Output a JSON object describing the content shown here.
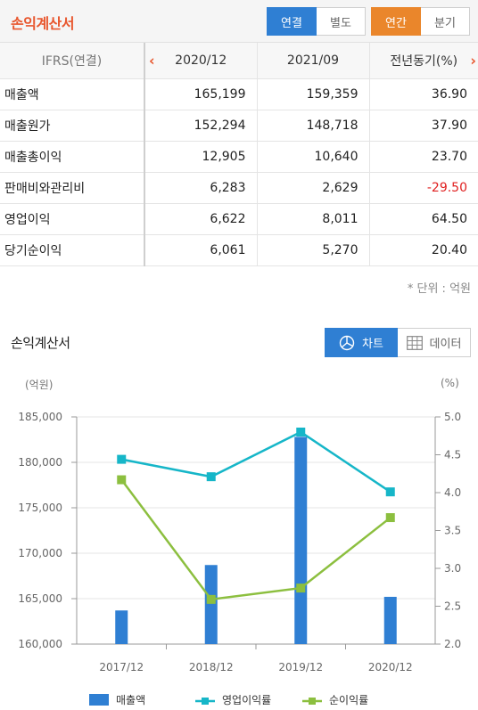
{
  "topbar": {
    "title": "손익계산서",
    "consolidation_tabs": [
      "연결",
      "별도"
    ],
    "period_tabs": [
      "연간",
      "분기"
    ]
  },
  "table": {
    "header_label": "IFRS(연결)",
    "columns": [
      "2020/12",
      "2021/09",
      "전년동기(%)"
    ],
    "rows": [
      {
        "label": "매출액",
        "values": [
          "165,199",
          "159,359",
          "36.90"
        ]
      },
      {
        "label": "매출원가",
        "values": [
          "152,294",
          "148,718",
          "37.90"
        ]
      },
      {
        "label": "매출총이익",
        "values": [
          "12,905",
          "10,640",
          "23.70"
        ]
      },
      {
        "label": "판매비와관리비",
        "values": [
          "6,283",
          "2,629",
          "-29.50"
        ]
      },
      {
        "label": "영업이익",
        "values": [
          "6,622",
          "8,011",
          "64.50"
        ]
      },
      {
        "label": "당기순이익",
        "values": [
          "6,061",
          "5,270",
          "20.40"
        ]
      }
    ],
    "unit_note": "* 단위 : 억원"
  },
  "chart_section": {
    "title": "손익계산서",
    "chart_button": "차트",
    "data_button": "데이터",
    "left_unit": "(억원)",
    "right_unit": "(%)"
  },
  "colors": {
    "bar": "#2f7fd3",
    "operating_margin": "#16b6c8",
    "net_margin": "#8cbf3f",
    "accent_orange": "#ea862b",
    "accent_blue": "#2f7fd3"
  },
  "chart_data": {
    "type": "bar",
    "categories": [
      "2017/12",
      "2018/12",
      "2019/12",
      "2020/12"
    ],
    "ylim_left": [
      160000,
      185000
    ],
    "yticks_left": [
      "185,000",
      "180,000",
      "175,000",
      "170,000",
      "165,000",
      "160,000"
    ],
    "ylim_right": [
      2.0,
      5.0
    ],
    "yticks_right": [
      "5.0",
      "4.5",
      "4.0",
      "3.5",
      "3.0",
      "2.5",
      "2.0"
    ],
    "series": [
      {
        "name": "매출액",
        "type": "bar",
        "axis": "left",
        "values": [
          163700,
          168700,
          182800,
          165199
        ]
      },
      {
        "name": "영업이익률",
        "type": "line",
        "axis": "right",
        "values": [
          4.44,
          4.21,
          4.8,
          4.01
        ]
      },
      {
        "name": "순이익률",
        "type": "line",
        "axis": "right",
        "values": [
          4.17,
          2.59,
          2.74,
          3.67
        ]
      }
    ],
    "legend_position": "bottom"
  }
}
